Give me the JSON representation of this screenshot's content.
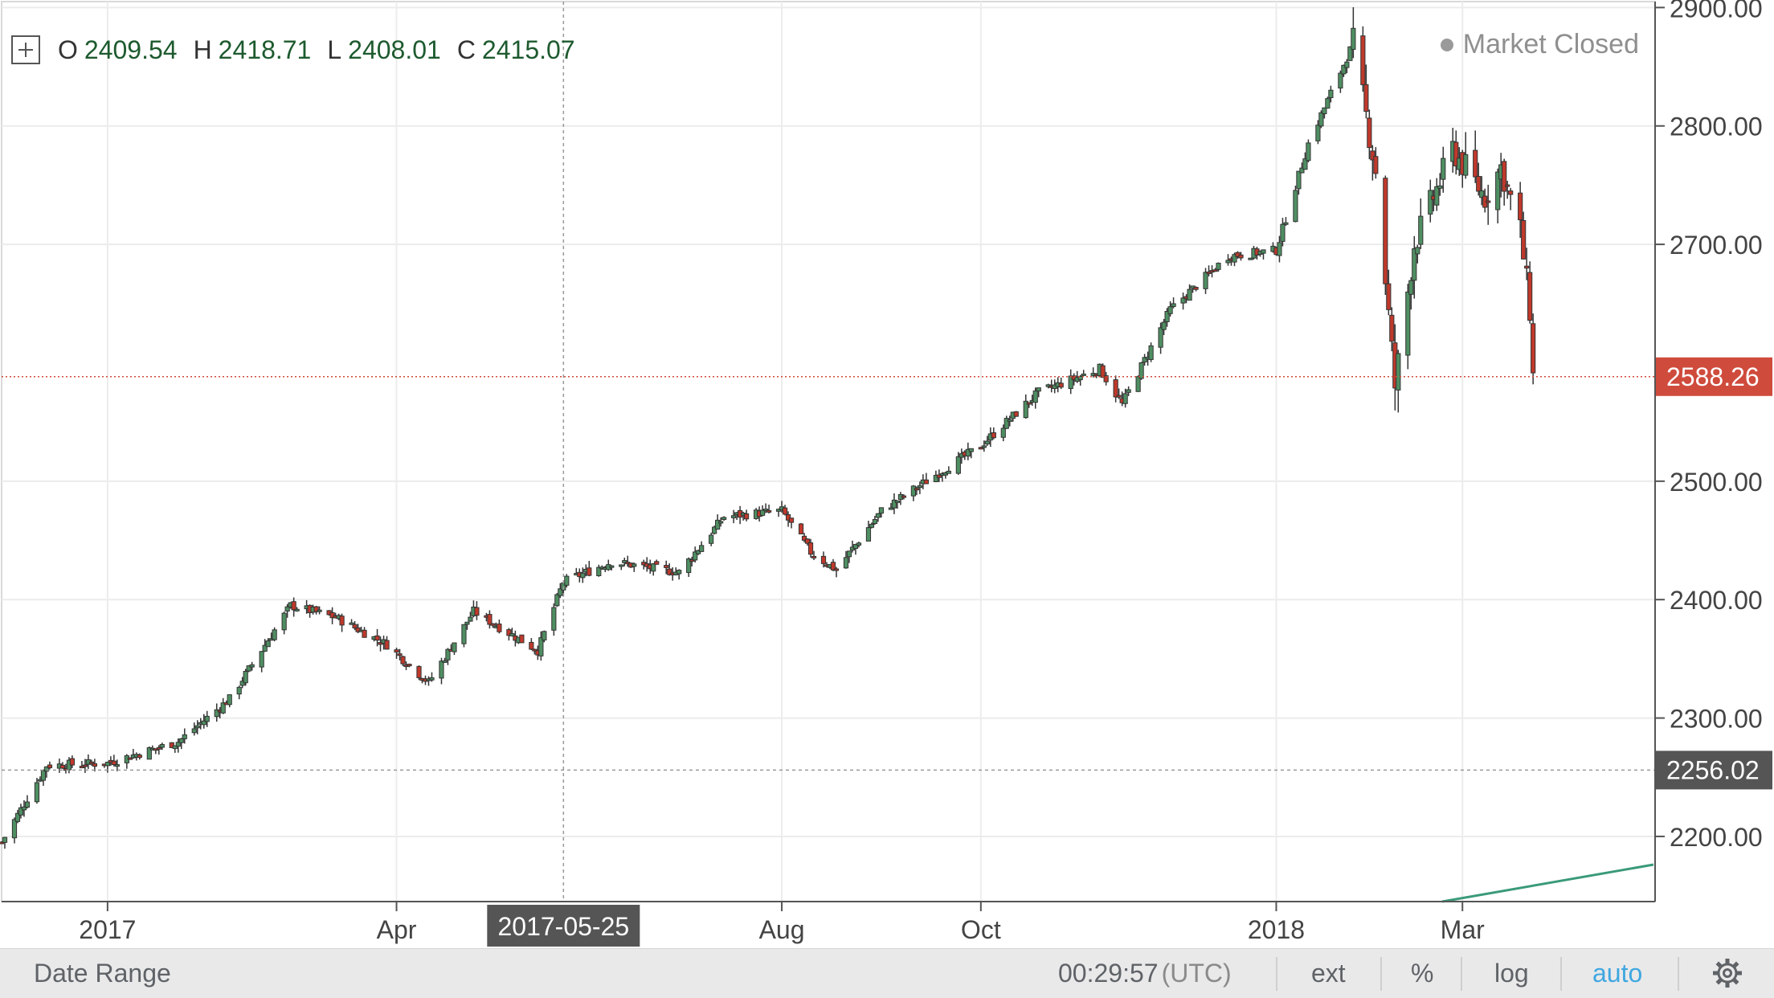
{
  "ohlc": {
    "open_key": "O",
    "open": "2409.54",
    "high_key": "H",
    "high": "2418.71",
    "low_key": "L",
    "low": "2408.01",
    "close_key": "C",
    "close": "2415.07"
  },
  "status": {
    "text": "Market Closed"
  },
  "footer": {
    "date_range": "Date Range",
    "clock": "00:29:57",
    "timezone": "(UTC)",
    "ext": "ext",
    "percent": "%",
    "log": "log",
    "auto": "auto"
  },
  "colors": {
    "up": "#4f8f62",
    "down": "#c0392b",
    "price_badge": "#cf4b3c",
    "crosshair_badge": "#555555",
    "accent": "#3fa7e0"
  },
  "chart_data": {
    "type": "candlestick",
    "y_ticks": [
      "2200.00",
      "2300.00",
      "2400.00",
      "2500.00",
      "2700.00",
      "2800.00",
      "2900.00"
    ],
    "y_range": [
      2145,
      2905
    ],
    "x_ticks": [
      {
        "label": "2017",
        "date": "2017-01-03"
      },
      {
        "label": "Apr",
        "date": "2017-04-03"
      },
      {
        "label": "Aug",
        "date": "2017-08-01"
      },
      {
        "label": "Oct",
        "date": "2017-10-02"
      },
      {
        "label": "2018",
        "date": "2018-01-02"
      },
      {
        "label": "Mar",
        "date": "2018-03-01"
      }
    ],
    "x_range": [
      "2016-12-01",
      "2018-04-30"
    ],
    "last_price": "2588.26",
    "crosshair": {
      "date": "2017-05-25",
      "price": "2256.02"
    },
    "grid": true,
    "close_series": [
      [
        "2016-12-01",
        2195
      ],
      [
        "2016-12-15",
        2260
      ],
      [
        "2017-01-03",
        2262
      ],
      [
        "2017-01-25",
        2280
      ],
      [
        "2017-02-10",
        2316
      ],
      [
        "2017-03-01",
        2395
      ],
      [
        "2017-03-15",
        2385
      ],
      [
        "2017-03-31",
        2362
      ],
      [
        "2017-04-13",
        2330
      ],
      [
        "2017-04-27",
        2390
      ],
      [
        "2017-05-17",
        2357
      ],
      [
        "2017-05-25",
        2415
      ],
      [
        "2017-06-09",
        2432
      ],
      [
        "2017-06-30",
        2423
      ],
      [
        "2017-07-14",
        2470
      ],
      [
        "2017-08-01",
        2475
      ],
      [
        "2017-08-10",
        2440
      ],
      [
        "2017-08-18",
        2425
      ],
      [
        "2017-09-01",
        2475
      ],
      [
        "2017-09-15",
        2500
      ],
      [
        "2017-10-02",
        2530
      ],
      [
        "2017-10-20",
        2575
      ],
      [
        "2017-11-08",
        2595
      ],
      [
        "2017-11-15",
        2565
      ],
      [
        "2017-11-30",
        2645
      ],
      [
        "2017-12-18",
        2690
      ],
      [
        "2018-01-02",
        2695
      ],
      [
        "2018-01-12",
        2785
      ],
      [
        "2018-01-26",
        2870
      ],
      [
        "2018-02-02",
        2762
      ],
      [
        "2018-02-08",
        2580
      ],
      [
        "2018-02-14",
        2700
      ],
      [
        "2018-02-26",
        2780
      ],
      [
        "2018-03-08",
        2740
      ],
      [
        "2018-03-13",
        2765
      ],
      [
        "2018-03-19",
        2712
      ],
      [
        "2018-03-22",
        2645
      ],
      [
        "2018-03-23",
        2588
      ]
    ]
  }
}
